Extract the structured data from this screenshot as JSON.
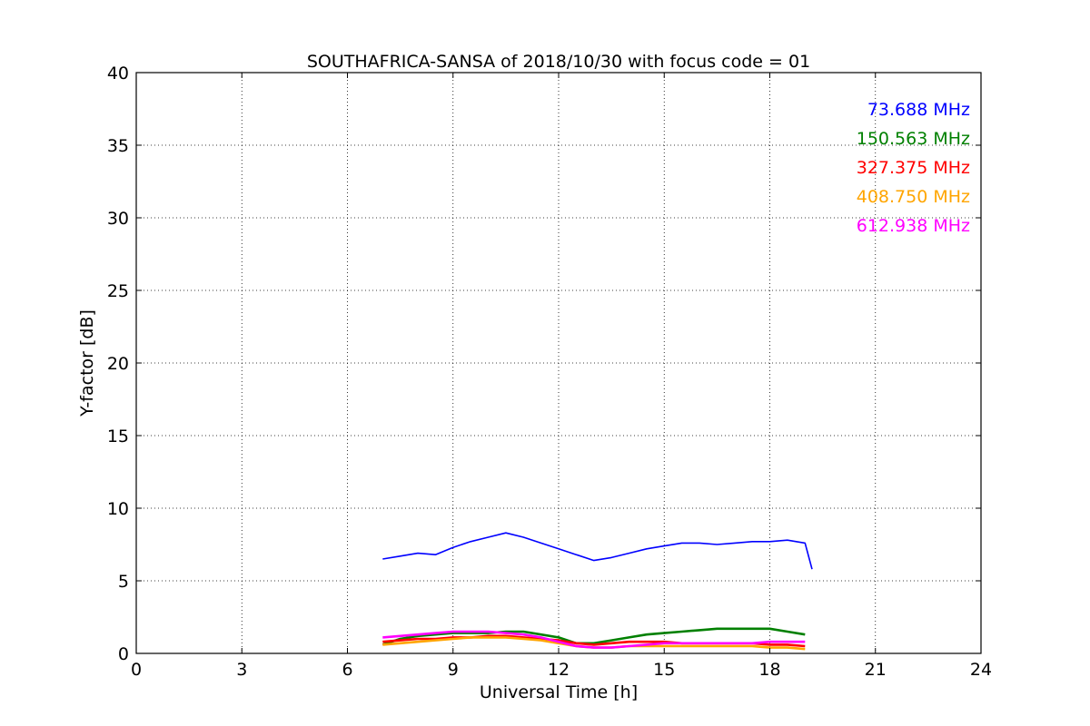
{
  "chart_data": {
    "type": "line",
    "title": "SOUTHAFRICA-SANSA of 2018/10/30 with focus code = 01",
    "xlabel": "Universal Time [h]",
    "ylabel": "Y-factor [dB]",
    "xlim": [
      0,
      24
    ],
    "ylim": [
      0,
      40
    ],
    "xticks": [
      0,
      3,
      6,
      9,
      12,
      15,
      18,
      21,
      24
    ],
    "yticks": [
      0,
      5,
      10,
      15,
      20,
      25,
      30,
      35,
      40
    ],
    "grid": true,
    "legend_position": "top-right",
    "series": [
      {
        "name": "73.688 MHz",
        "color": "#0000ff",
        "x": [
          7.0,
          7.5,
          8.0,
          8.5,
          9.0,
          9.5,
          10.0,
          10.5,
          11.0,
          11.5,
          12.0,
          12.5,
          13.0,
          13.5,
          14.0,
          14.5,
          15.0,
          15.5,
          16.0,
          16.5,
          17.0,
          17.5,
          18.0,
          18.5,
          19.0,
          19.2
        ],
        "y": [
          6.5,
          6.7,
          6.9,
          6.8,
          7.3,
          7.7,
          8.0,
          8.3,
          8.0,
          7.6,
          7.2,
          6.8,
          6.4,
          6.6,
          6.9,
          7.2,
          7.4,
          7.6,
          7.6,
          7.5,
          7.6,
          7.7,
          7.7,
          7.8,
          7.6,
          5.8
        ]
      },
      {
        "name": "150.563 MHz",
        "color": "#008000",
        "x": [
          7.0,
          7.5,
          8.0,
          8.5,
          9.0,
          9.5,
          10.0,
          10.5,
          11.0,
          11.5,
          12.0,
          12.5,
          13.0,
          13.5,
          14.0,
          14.5,
          15.0,
          15.5,
          16.0,
          16.5,
          17.0,
          17.5,
          18.0,
          18.5,
          19.0
        ],
        "y": [
          0.6,
          1.0,
          1.2,
          1.3,
          1.4,
          1.4,
          1.4,
          1.5,
          1.5,
          1.3,
          1.1,
          0.7,
          0.7,
          0.9,
          1.1,
          1.3,
          1.4,
          1.5,
          1.6,
          1.7,
          1.7,
          1.7,
          1.7,
          1.5,
          1.3
        ]
      },
      {
        "name": "327.375 MHz",
        "color": "#ff0000",
        "x": [
          7.0,
          7.5,
          8.0,
          8.5,
          9.0,
          9.5,
          10.0,
          10.5,
          11.0,
          11.5,
          12.0,
          12.5,
          13.0,
          13.5,
          14.0,
          14.5,
          15.0,
          15.5,
          16.0,
          16.5,
          17.0,
          17.5,
          18.0,
          18.5,
          19.0
        ],
        "y": [
          0.8,
          0.9,
          1.0,
          1.0,
          1.1,
          1.1,
          1.2,
          1.2,
          1.1,
          1.0,
          0.9,
          0.7,
          0.6,
          0.7,
          0.8,
          0.8,
          0.8,
          0.7,
          0.7,
          0.7,
          0.7,
          0.7,
          0.6,
          0.6,
          0.5
        ]
      },
      {
        "name": "408.750 MHz",
        "color": "#ffa500",
        "x": [
          7.0,
          7.5,
          8.0,
          8.5,
          9.0,
          9.5,
          10.0,
          10.5,
          11.0,
          11.5,
          12.0,
          12.5,
          13.0,
          13.5,
          14.0,
          14.5,
          15.0,
          15.5,
          16.0,
          16.5,
          17.0,
          17.5,
          18.0,
          18.5,
          19.0
        ],
        "y": [
          0.6,
          0.7,
          0.8,
          0.9,
          1.0,
          1.1,
          1.1,
          1.1,
          1.0,
          0.9,
          0.7,
          0.5,
          0.4,
          0.4,
          0.5,
          0.5,
          0.5,
          0.5,
          0.5,
          0.5,
          0.5,
          0.5,
          0.4,
          0.4,
          0.3
        ]
      },
      {
        "name": "612.938 MHz",
        "color": "#ff00ff",
        "x": [
          7.0,
          7.5,
          8.0,
          8.5,
          9.0,
          9.5,
          10.0,
          10.5,
          11.0,
          11.5,
          12.0,
          12.5,
          13.0,
          13.5,
          14.0,
          14.5,
          15.0,
          15.5,
          16.0,
          16.5,
          17.0,
          17.5,
          18.0,
          18.5,
          19.0
        ],
        "y": [
          1.1,
          1.2,
          1.3,
          1.4,
          1.5,
          1.5,
          1.5,
          1.4,
          1.3,
          1.1,
          0.8,
          0.5,
          0.4,
          0.4,
          0.5,
          0.6,
          0.7,
          0.7,
          0.7,
          0.7,
          0.7,
          0.7,
          0.8,
          0.8,
          0.8
        ]
      }
    ]
  }
}
